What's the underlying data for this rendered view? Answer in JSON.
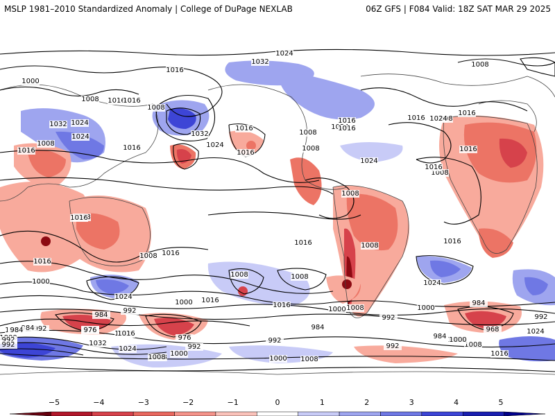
{
  "header": {
    "title_left": "MSLP 1981–2010 Standardized Anomaly | College of DuPage NEXLAB",
    "title_right": "06Z GFS | F084 Valid: 18Z SAT MAR 29 2025"
  },
  "colorbar": {
    "ticks": [
      "−5",
      "−4",
      "−3",
      "−2",
      "−1",
      "0",
      "1",
      "2",
      "3",
      "4",
      "5"
    ],
    "colors": [
      "#67000d",
      "#b2182b",
      "#d6424b",
      "#e8685f",
      "#f4938a",
      "#fac2ba",
      "#ffffff",
      "#c8cbf7",
      "#9ea5ef",
      "#6f78e4",
      "#3d45d6",
      "#1a1fb0",
      "#00008a"
    ]
  },
  "map": {
    "anomaly_colors": {
      "neg5": "#8c0a12",
      "neg3": "#d6424b",
      "neg2": "#ec7465",
      "neg1": "#f8aa9c",
      "pos1": "#c8cbf7",
      "pos2": "#9ea5ef",
      "pos3": "#6f78e4",
      "pos4": "#3d45d6",
      "pos5": "#1a1fb0"
    },
    "isobar_labels": [
      "1024",
      "1032",
      "1008",
      "1016",
      "1000",
      "1016",
      "1008",
      "1008",
      "1016",
      "1032",
      "1024",
      "1032",
      "1024",
      "1008",
      "1016",
      "1024",
      "1016",
      "1016",
      "1016",
      "1008",
      "1008",
      "1016",
      "1024",
      "1016",
      "1008",
      "1024",
      "1016",
      "1016",
      "1024",
      "1016",
      "1008",
      "1008",
      "1016",
      "1008",
      "1016",
      "1008",
      "1016",
      "1016",
      "1008",
      "1016",
      "1016",
      "1000",
      "1008",
      "1024",
      "1008",
      "1024",
      "1016",
      "1016",
      "1008",
      "1000",
      "1000",
      "1000",
      "984",
      "992",
      "976",
      "1016",
      "984",
      "976",
      "992",
      "992",
      "984",
      "992",
      "1032",
      "1024",
      "1016",
      "1008",
      "1000",
      "992",
      "984",
      "976",
      "968",
      "992",
      "1000",
      "1008",
      "1008",
      "1016",
      "1024",
      "984",
      "992",
      "992",
      "1000",
      "1008",
      "1016",
      "1008",
      "1000",
      "992",
      "984"
    ]
  }
}
